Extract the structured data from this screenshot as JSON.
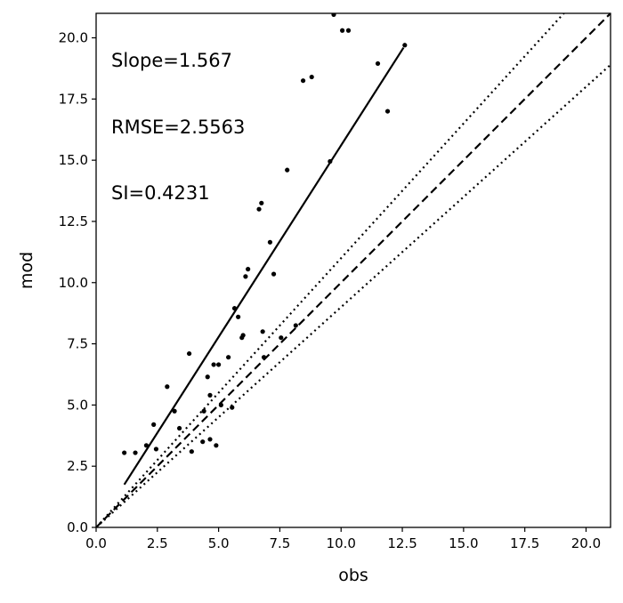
{
  "chart_data": {
    "type": "scatter",
    "title": "",
    "xlabel": "obs",
    "ylabel": "mod",
    "xlim": [
      0,
      21
    ],
    "ylim": [
      0,
      21
    ],
    "x_ticks": [
      "0.0",
      "2.5",
      "5.0",
      "7.5",
      "10.0",
      "12.5",
      "15.0",
      "17.5",
      "20.0"
    ],
    "y_ticks": [
      "0.0",
      "2.5",
      "5.0",
      "7.5",
      "10.0",
      "12.5",
      "15.0",
      "17.5",
      "20.0"
    ],
    "grid": false,
    "annotations": [
      "Slope=1.567",
      "RMSE=2.5563",
      "SI=0.4231"
    ],
    "points": [
      {
        "x": 1.15,
        "y": 3.05
      },
      {
        "x": 1.6,
        "y": 3.05
      },
      {
        "x": 2.05,
        "y": 3.35
      },
      {
        "x": 2.35,
        "y": 4.2
      },
      {
        "x": 2.45,
        "y": 3.2
      },
      {
        "x": 2.9,
        "y": 5.75
      },
      {
        "x": 3.2,
        "y": 4.75
      },
      {
        "x": 3.4,
        "y": 4.05
      },
      {
        "x": 3.8,
        "y": 7.1
      },
      {
        "x": 3.9,
        "y": 3.1
      },
      {
        "x": 4.35,
        "y": 3.5
      },
      {
        "x": 4.4,
        "y": 4.75
      },
      {
        "x": 4.55,
        "y": 6.15
      },
      {
        "x": 4.65,
        "y": 5.4
      },
      {
        "x": 4.65,
        "y": 3.6
      },
      {
        "x": 4.8,
        "y": 6.65
      },
      {
        "x": 4.9,
        "y": 3.35
      },
      {
        "x": 5.0,
        "y": 6.65
      },
      {
        "x": 5.1,
        "y": 5.0
      },
      {
        "x": 5.4,
        "y": 6.95
      },
      {
        "x": 5.55,
        "y": 4.9
      },
      {
        "x": 5.65,
        "y": 8.95
      },
      {
        "x": 5.8,
        "y": 8.6
      },
      {
        "x": 5.95,
        "y": 7.75
      },
      {
        "x": 6.0,
        "y": 7.85
      },
      {
        "x": 6.1,
        "y": 10.25
      },
      {
        "x": 6.2,
        "y": 10.55
      },
      {
        "x": 6.65,
        "y": 13.0
      },
      {
        "x": 6.75,
        "y": 13.25
      },
      {
        "x": 6.8,
        "y": 8.0
      },
      {
        "x": 6.85,
        "y": 6.95
      },
      {
        "x": 7.1,
        "y": 11.65
      },
      {
        "x": 7.25,
        "y": 10.35
      },
      {
        "x": 7.55,
        "y": 7.75
      },
      {
        "x": 7.8,
        "y": 14.6
      },
      {
        "x": 8.15,
        "y": 8.25
      },
      {
        "x": 8.45,
        "y": 18.25
      },
      {
        "x": 8.8,
        "y": 18.4
      },
      {
        "x": 9.55,
        "y": 14.95
      },
      {
        "x": 9.7,
        "y": 20.95
      },
      {
        "x": 10.05,
        "y": 20.3
      },
      {
        "x": 10.3,
        "y": 20.3
      },
      {
        "x": 11.5,
        "y": 18.95
      },
      {
        "x": 11.9,
        "y": 17.0
      },
      {
        "x": 12.6,
        "y": 19.7
      }
    ],
    "fit_line": {
      "x": [
        1.15,
        12.55
      ],
      "y": [
        1.75,
        19.6
      ]
    },
    "reference_lines": [
      {
        "style": "dashed",
        "slope": 1.0
      },
      {
        "style": "dotted",
        "slope": 1.1
      },
      {
        "style": "dotted",
        "slope": 0.9
      }
    ]
  }
}
